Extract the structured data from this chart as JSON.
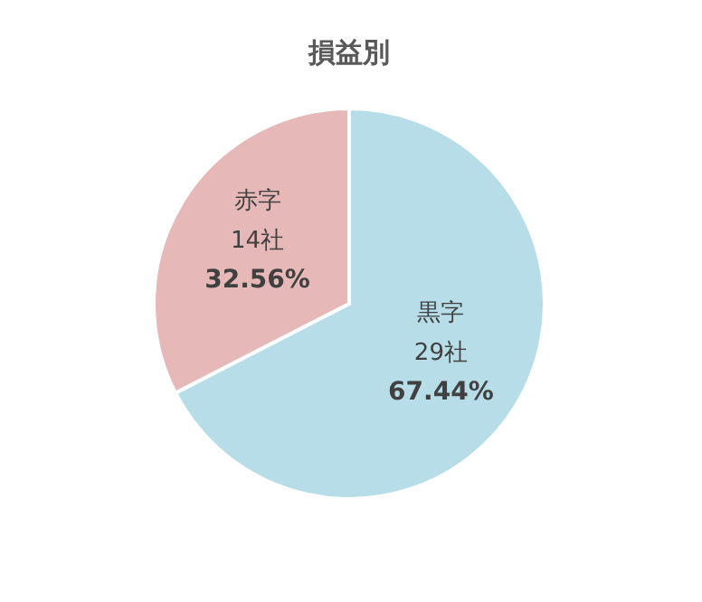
{
  "chart_data": {
    "type": "pie",
    "title": "損益別",
    "categories": [
      "黒字",
      "赤字"
    ],
    "values": [
      29,
      14
    ],
    "colors": [
      "#b7dee8",
      "#e6b9b8"
    ],
    "value_labels": [
      "29社",
      "14社"
    ],
    "annotations": [
      "67.44%",
      "32.56%"
    ]
  }
}
